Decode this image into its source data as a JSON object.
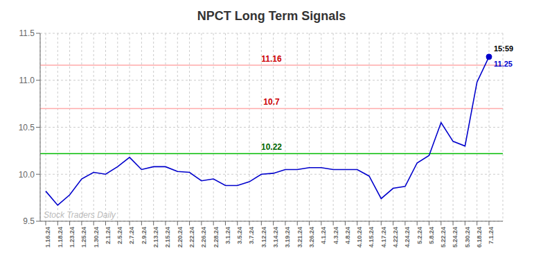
{
  "chart_data": {
    "type": "line",
    "title": "NPCT Long Term Signals",
    "categories": [
      "1.16.24",
      "1.18.24",
      "1.23.24",
      "1.25.24",
      "1.30.24",
      "2.1.24",
      "2.5.24",
      "2.7.24",
      "2.9.24",
      "2.13.24",
      "2.15.24",
      "2.20.24",
      "2.22.24",
      "2.26.24",
      "2.28.24",
      "3.1.24",
      "3.5.24",
      "3.7.24",
      "3.12.24",
      "3.14.24",
      "3.19.24",
      "3.21.24",
      "3.26.24",
      "4.1.24",
      "4.3.24",
      "4.8.24",
      "4.10.24",
      "4.15.24",
      "4.17.24",
      "4.22.24",
      "4.24.24",
      "5.2.24",
      "5.8.24",
      "5.22.24",
      "5.24.24",
      "5.30.24",
      "6.18.24",
      "7.1.24"
    ],
    "series": [
      {
        "color": "#0000cc",
        "values": [
          9.82,
          9.67,
          9.78,
          9.95,
          10.02,
          10.0,
          10.08,
          10.18,
          10.05,
          10.08,
          10.08,
          10.03,
          10.02,
          9.93,
          9.95,
          9.88,
          9.88,
          9.92,
          10.0,
          10.01,
          10.05,
          10.05,
          10.07,
          10.07,
          10.05,
          10.05,
          10.05,
          9.98,
          9.74,
          9.85,
          9.87,
          10.12,
          10.2,
          10.55,
          10.35,
          10.3,
          10.98,
          11.25
        ]
      }
    ],
    "ylim": [
      9.5,
      11.5
    ],
    "yticks": [
      9.5,
      {
        "value": 10,
        "label": "10.0"
      },
      10.5,
      {
        "value": 11,
        "label": "11.0"
      },
      11.5
    ],
    "grid": true,
    "hlines": [
      {
        "value": 10.22,
        "label": "10.22",
        "color": "#00bb00",
        "label_color": "#006600"
      },
      {
        "value": 10.7,
        "label": "10.7",
        "color": "#ffaaaa",
        "label_color": "#cc0000"
      },
      {
        "value": 11.16,
        "label": "11.16",
        "color": "#ffaaaa",
        "label_color": "#cc0000"
      }
    ],
    "endpoint": {
      "marker": "circle",
      "color": "#0000cc",
      "annotations": [
        {
          "text": "15:59",
          "color": "#000000"
        },
        {
          "text": "11.25",
          "color": "#0000cc"
        }
      ]
    },
    "watermark": {
      "text": "Stock Traders Daily",
      "color": "#bbbbbb"
    }
  }
}
